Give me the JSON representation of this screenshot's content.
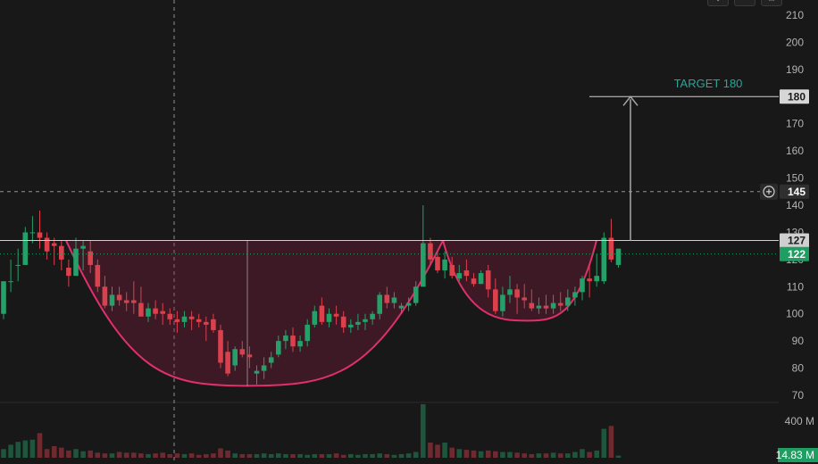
{
  "toolbar": {
    "buttons": [
      "down-arrow-icon",
      "close-icon",
      "maximize-icon"
    ]
  },
  "chart_data": {
    "type": "candlestick",
    "price_axis": {
      "ticks": [
        "70",
        "80",
        "90",
        "100",
        "110",
        "120",
        "130",
        "140",
        "150",
        "160",
        "170",
        "180",
        "190",
        "200",
        "210"
      ],
      "range": [
        66,
        214
      ]
    },
    "volume_axis": {
      "tick_label": "400 M",
      "current_volume_label": "14.83 M"
    },
    "price_labels": {
      "target": "180",
      "crosshair": "145",
      "resistance": "127",
      "last": "122"
    },
    "annotation": {
      "text": "TARGET 180"
    },
    "pattern": "cup and handle",
    "levels": {
      "resistance": 127,
      "target": 180,
      "crosshair": 145,
      "last": 122
    },
    "cup_bottom": 73.5,
    "handle_bottom": 97.5,
    "candles": [
      [
        100,
        112,
        98,
        112
      ],
      [
        112,
        120,
        108,
        112
      ],
      [
        118,
        124,
        112,
        118
      ],
      [
        118,
        132,
        118,
        130
      ],
      [
        130,
        136,
        126,
        130
      ],
      [
        130,
        138,
        124,
        128
      ],
      [
        128,
        130,
        120,
        123
      ],
      [
        126,
        128,
        118,
        125
      ],
      [
        125,
        127,
        116,
        120
      ],
      [
        117,
        120,
        110,
        114
      ],
      [
        114,
        128,
        114,
        124
      ],
      [
        124,
        127,
        116,
        125
      ],
      [
        123,
        127,
        115,
        118
      ],
      [
        118,
        120,
        108,
        110
      ],
      [
        110,
        114,
        102,
        103
      ],
      [
        103,
        110,
        101,
        107
      ],
      [
        107,
        110,
        103,
        105
      ],
      [
        105,
        108,
        101,
        104
      ],
      [
        105,
        112,
        100,
        104
      ],
      [
        104,
        110,
        99,
        99
      ],
      [
        99,
        104,
        97,
        102
      ],
      [
        102,
        105,
        98,
        100
      ],
      [
        101,
        104,
        96,
        100
      ],
      [
        100,
        102,
        96,
        98
      ],
      [
        98,
        101,
        93,
        97
      ],
      [
        97,
        101,
        95,
        99
      ],
      [
        99,
        101,
        94,
        98
      ],
      [
        98,
        100,
        95,
        97
      ],
      [
        97,
        99,
        90,
        96
      ],
      [
        98,
        100,
        93,
        94
      ],
      [
        94,
        96,
        80,
        82
      ],
      [
        86,
        90,
        77,
        78
      ],
      [
        81,
        88,
        79,
        87
      ],
      [
        87,
        90,
        84,
        85
      ],
      [
        85,
        88,
        80,
        84
      ],
      [
        78,
        81,
        74,
        79
      ],
      [
        79,
        84,
        76,
        81
      ],
      [
        82,
        86,
        80,
        84
      ],
      [
        85,
        92,
        84,
        90
      ],
      [
        90,
        94,
        87,
        92
      ],
      [
        92,
        95,
        86,
        88
      ],
      [
        88,
        92,
        86,
        90
      ],
      [
        90,
        98,
        88,
        96
      ],
      [
        96,
        103,
        95,
        101
      ],
      [
        103,
        106,
        96,
        97
      ],
      [
        97,
        102,
        95,
        100
      ],
      [
        100,
        103,
        96,
        99
      ],
      [
        99,
        101,
        93,
        95
      ],
      [
        95,
        98,
        93,
        96
      ],
      [
        96,
        100,
        94,
        97
      ],
      [
        97,
        100,
        94,
        98
      ],
      [
        98,
        101,
        96,
        100
      ],
      [
        100,
        108,
        98,
        107
      ],
      [
        107,
        110,
        102,
        104
      ],
      [
        104,
        108,
        102,
        106
      ],
      [
        102,
        104,
        100,
        103
      ],
      [
        103,
        106,
        101,
        104
      ],
      [
        104,
        112,
        103,
        110
      ],
      [
        110,
        140,
        110,
        126
      ],
      [
        126,
        128,
        118,
        120
      ],
      [
        121,
        123,
        115,
        116
      ],
      [
        116,
        123,
        113,
        120
      ],
      [
        118,
        121,
        113,
        114
      ],
      [
        113,
        118,
        112,
        115
      ],
      [
        116,
        120,
        112,
        114
      ],
      [
        113,
        115,
        110,
        111
      ],
      [
        111,
        116,
        111,
        115
      ],
      [
        116,
        118,
        106,
        109
      ],
      [
        109,
        113,
        100,
        101
      ],
      [
        101,
        110,
        99,
        107
      ],
      [
        107,
        114,
        104,
        109
      ],
      [
        109,
        111,
        100,
        106
      ],
      [
        106,
        111,
        102,
        105
      ],
      [
        104,
        109,
        101,
        102
      ],
      [
        102,
        106,
        100,
        103
      ],
      [
        103,
        107,
        100,
        102
      ],
      [
        102,
        107,
        100,
        104
      ],
      [
        104,
        108,
        101,
        103
      ],
      [
        103,
        109,
        101,
        106
      ],
      [
        106,
        110,
        103,
        108
      ],
      [
        108,
        114,
        105,
        113
      ],
      [
        113,
        118,
        106,
        112
      ],
      [
        112,
        122,
        110,
        114
      ],
      [
        112,
        130,
        111,
        128
      ],
      [
        128,
        135,
        119,
        120
      ],
      [
        118,
        124,
        117,
        124
      ]
    ],
    "volumes": [
      12,
      18,
      22,
      24,
      25,
      34,
      12,
      16,
      14,
      10,
      12,
      9,
      10,
      7,
      6,
      6,
      8,
      7,
      7,
      6,
      5,
      6,
      7,
      5,
      6,
      5,
      6,
      4,
      5,
      6,
      13,
      10,
      6,
      5,
      5,
      5,
      6,
      5,
      6,
      5,
      5,
      5,
      4,
      5,
      5,
      5,
      6,
      4,
      5,
      4,
      5,
      5,
      6,
      5,
      4,
      5,
      6,
      8,
      74,
      21,
      18,
      21,
      14,
      12,
      11,
      10,
      9,
      10,
      9,
      8,
      8,
      7,
      6,
      5,
      6,
      6,
      7,
      6,
      6,
      8,
      12,
      8,
      10,
      40,
      44,
      3
    ]
  }
}
